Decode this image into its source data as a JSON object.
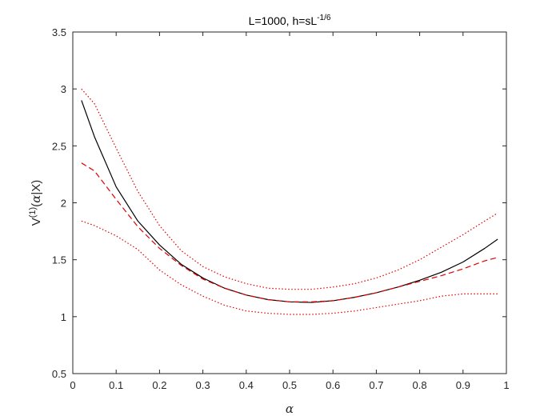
{
  "chart_data": {
    "type": "line",
    "title": {
      "main": "L=1000, h=sL",
      "sup": "-1/6"
    },
    "xlabel": "α",
    "ylabel": {
      "prefix": "V",
      "sup": "(1)",
      "paren_open": "(",
      "alpha": "α",
      "suffix": "|X)"
    },
    "xlim": [
      0,
      1
    ],
    "ylim": [
      0.5,
      3.5
    ],
    "xticks": [
      0,
      0.1,
      0.2,
      0.3,
      0.4,
      0.5,
      0.6,
      0.7,
      0.8,
      0.9,
      1
    ],
    "xtick_labels": [
      "0",
      "0.1",
      "0.2",
      "0.3",
      "0.4",
      "0.5",
      "0.6",
      "0.7",
      "0.8",
      "0.9",
      "1"
    ],
    "yticks": [
      0.5,
      1,
      1.5,
      2,
      2.5,
      3,
      3.5
    ],
    "ytick_labels": [
      "0.5",
      "1",
      "1.5",
      "2",
      "2.5",
      "3",
      "3.5"
    ],
    "grid": false,
    "series": [
      {
        "style": "solid",
        "color": "#000000",
        "x": [
          0.02,
          0.05,
          0.1,
          0.15,
          0.2,
          0.25,
          0.3,
          0.35,
          0.4,
          0.45,
          0.5,
          0.55,
          0.6,
          0.65,
          0.7,
          0.75,
          0.8,
          0.85,
          0.9,
          0.95,
          0.98
        ],
        "y": [
          2.9,
          2.58,
          2.14,
          1.84,
          1.63,
          1.46,
          1.34,
          1.25,
          1.19,
          1.15,
          1.13,
          1.125,
          1.14,
          1.17,
          1.21,
          1.26,
          1.32,
          1.39,
          1.48,
          1.6,
          1.68
        ]
      },
      {
        "style": "dashed",
        "color": "#e00000",
        "x": [
          0.02,
          0.05,
          0.1,
          0.15,
          0.2,
          0.25,
          0.3,
          0.35,
          0.4,
          0.45,
          0.5,
          0.55,
          0.6,
          0.65,
          0.7,
          0.75,
          0.8,
          0.85,
          0.9,
          0.95,
          0.98
        ],
        "y": [
          2.35,
          2.28,
          2.03,
          1.79,
          1.6,
          1.45,
          1.33,
          1.25,
          1.19,
          1.15,
          1.13,
          1.13,
          1.14,
          1.17,
          1.21,
          1.26,
          1.31,
          1.36,
          1.42,
          1.49,
          1.52
        ]
      },
      {
        "style": "dotted",
        "color": "#e00000",
        "x": [
          0.02,
          0.05,
          0.1,
          0.15,
          0.2,
          0.25,
          0.3,
          0.35,
          0.4,
          0.45,
          0.5,
          0.55,
          0.6,
          0.65,
          0.7,
          0.75,
          0.8,
          0.85,
          0.9,
          0.95,
          0.98
        ],
        "y": [
          3.0,
          2.87,
          2.48,
          2.1,
          1.8,
          1.58,
          1.44,
          1.35,
          1.29,
          1.25,
          1.24,
          1.24,
          1.26,
          1.29,
          1.34,
          1.41,
          1.5,
          1.61,
          1.72,
          1.84,
          1.91
        ]
      },
      {
        "style": "dotted",
        "color": "#e00000",
        "x": [
          0.02,
          0.05,
          0.1,
          0.15,
          0.2,
          0.25,
          0.3,
          0.35,
          0.4,
          0.45,
          0.5,
          0.55,
          0.6,
          0.65,
          0.7,
          0.75,
          0.8,
          0.85,
          0.9,
          0.95,
          0.98
        ],
        "y": [
          1.84,
          1.8,
          1.71,
          1.59,
          1.41,
          1.28,
          1.18,
          1.1,
          1.05,
          1.03,
          1.02,
          1.02,
          1.03,
          1.05,
          1.08,
          1.11,
          1.14,
          1.18,
          1.2,
          1.2,
          1.2
        ]
      }
    ]
  }
}
